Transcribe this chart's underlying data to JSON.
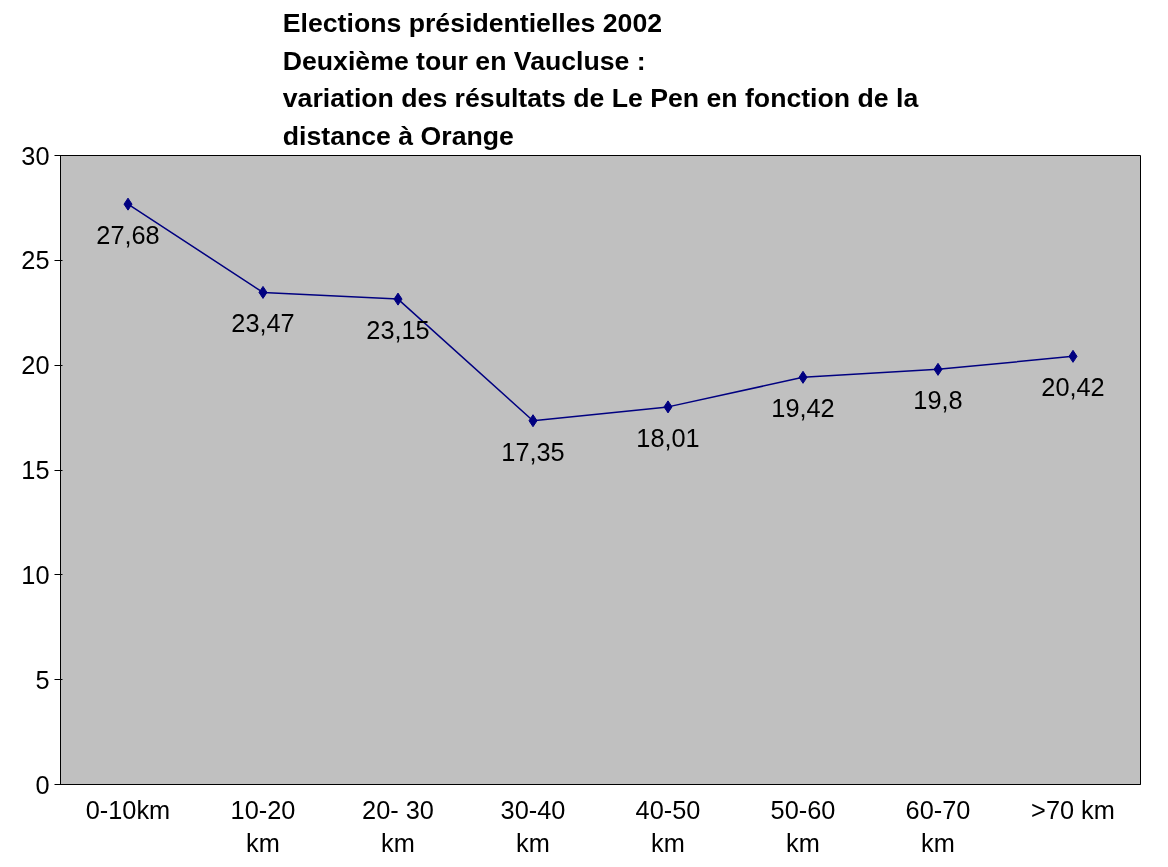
{
  "chart_data": {
    "type": "line",
    "title": "Elections présidentielles 2002\nDeuxième tour en Vaucluse :\nvariation des résultats de Le Pen en fonction de la\ndistance à Orange",
    "categories": [
      "0-10km",
      "10-20\nkm",
      "20- 30\nkm",
      "30-40\nkm",
      "40-50\nkm",
      "50-60\nkm",
      "60-70\nkm",
      ">70 km"
    ],
    "series": [
      {
        "color": "#000080",
        "values": [
          27.68,
          23.47,
          23.15,
          17.35,
          18.01,
          19.42,
          19.8,
          20.42
        ],
        "value_labels": [
          "27,68",
          "23,47",
          "23,15",
          "17,35",
          "18,01",
          "19,42",
          "19,8",
          "20,42"
        ]
      }
    ],
    "ylim": [
      0,
      30
    ],
    "yticks": [
      0,
      5,
      10,
      15,
      20,
      25,
      30
    ],
    "grid": false,
    "marker": "diamond",
    "line_style": "solid"
  }
}
